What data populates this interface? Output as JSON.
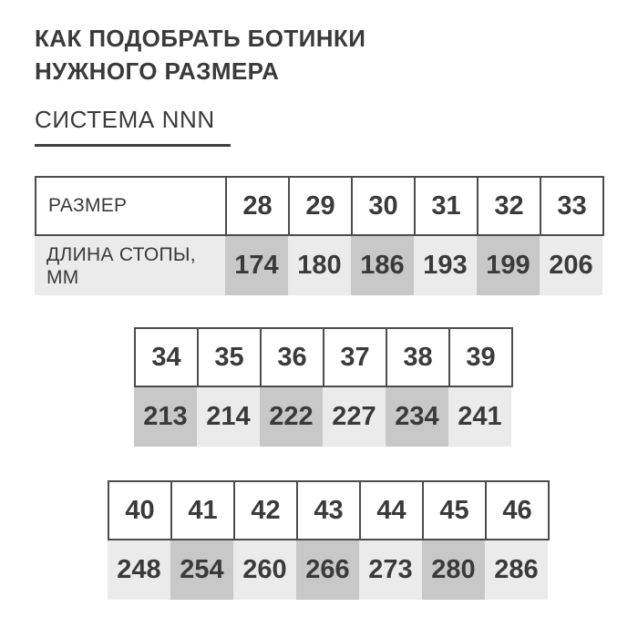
{
  "page": {
    "title_line1": "КАК ПОДОБРАТЬ БОТИНКИ",
    "title_line2": "НУЖНОГО РАЗМЕРА",
    "subtitle": "СИСТЕМА NNN"
  },
  "table": {
    "size_label": "РАЗМЕР",
    "length_label_line1": "ДЛИНА СТОПЫ,",
    "length_label_line2": "ММ",
    "rows": [
      {
        "sizes": [
          "28",
          "29",
          "30",
          "31",
          "32",
          "33"
        ],
        "lengths": [
          "174",
          "180",
          "186",
          "193",
          "199",
          "206"
        ]
      },
      {
        "sizes": [
          "34",
          "35",
          "36",
          "37",
          "38",
          "39"
        ],
        "lengths": [
          "213",
          "214",
          "222",
          "227",
          "234",
          "241"
        ]
      },
      {
        "sizes": [
          "40",
          "41",
          "42",
          "43",
          "44",
          "45",
          "46"
        ],
        "lengths": [
          "248",
          "254",
          "260",
          "266",
          "273",
          "280",
          "286"
        ]
      }
    ]
  },
  "colors": {
    "text": "#3a3a3a",
    "border": "#4c4c4c",
    "cell_dark": "#c8c8c8",
    "cell_light": "#ebebeb",
    "bg": "#ffffff"
  }
}
